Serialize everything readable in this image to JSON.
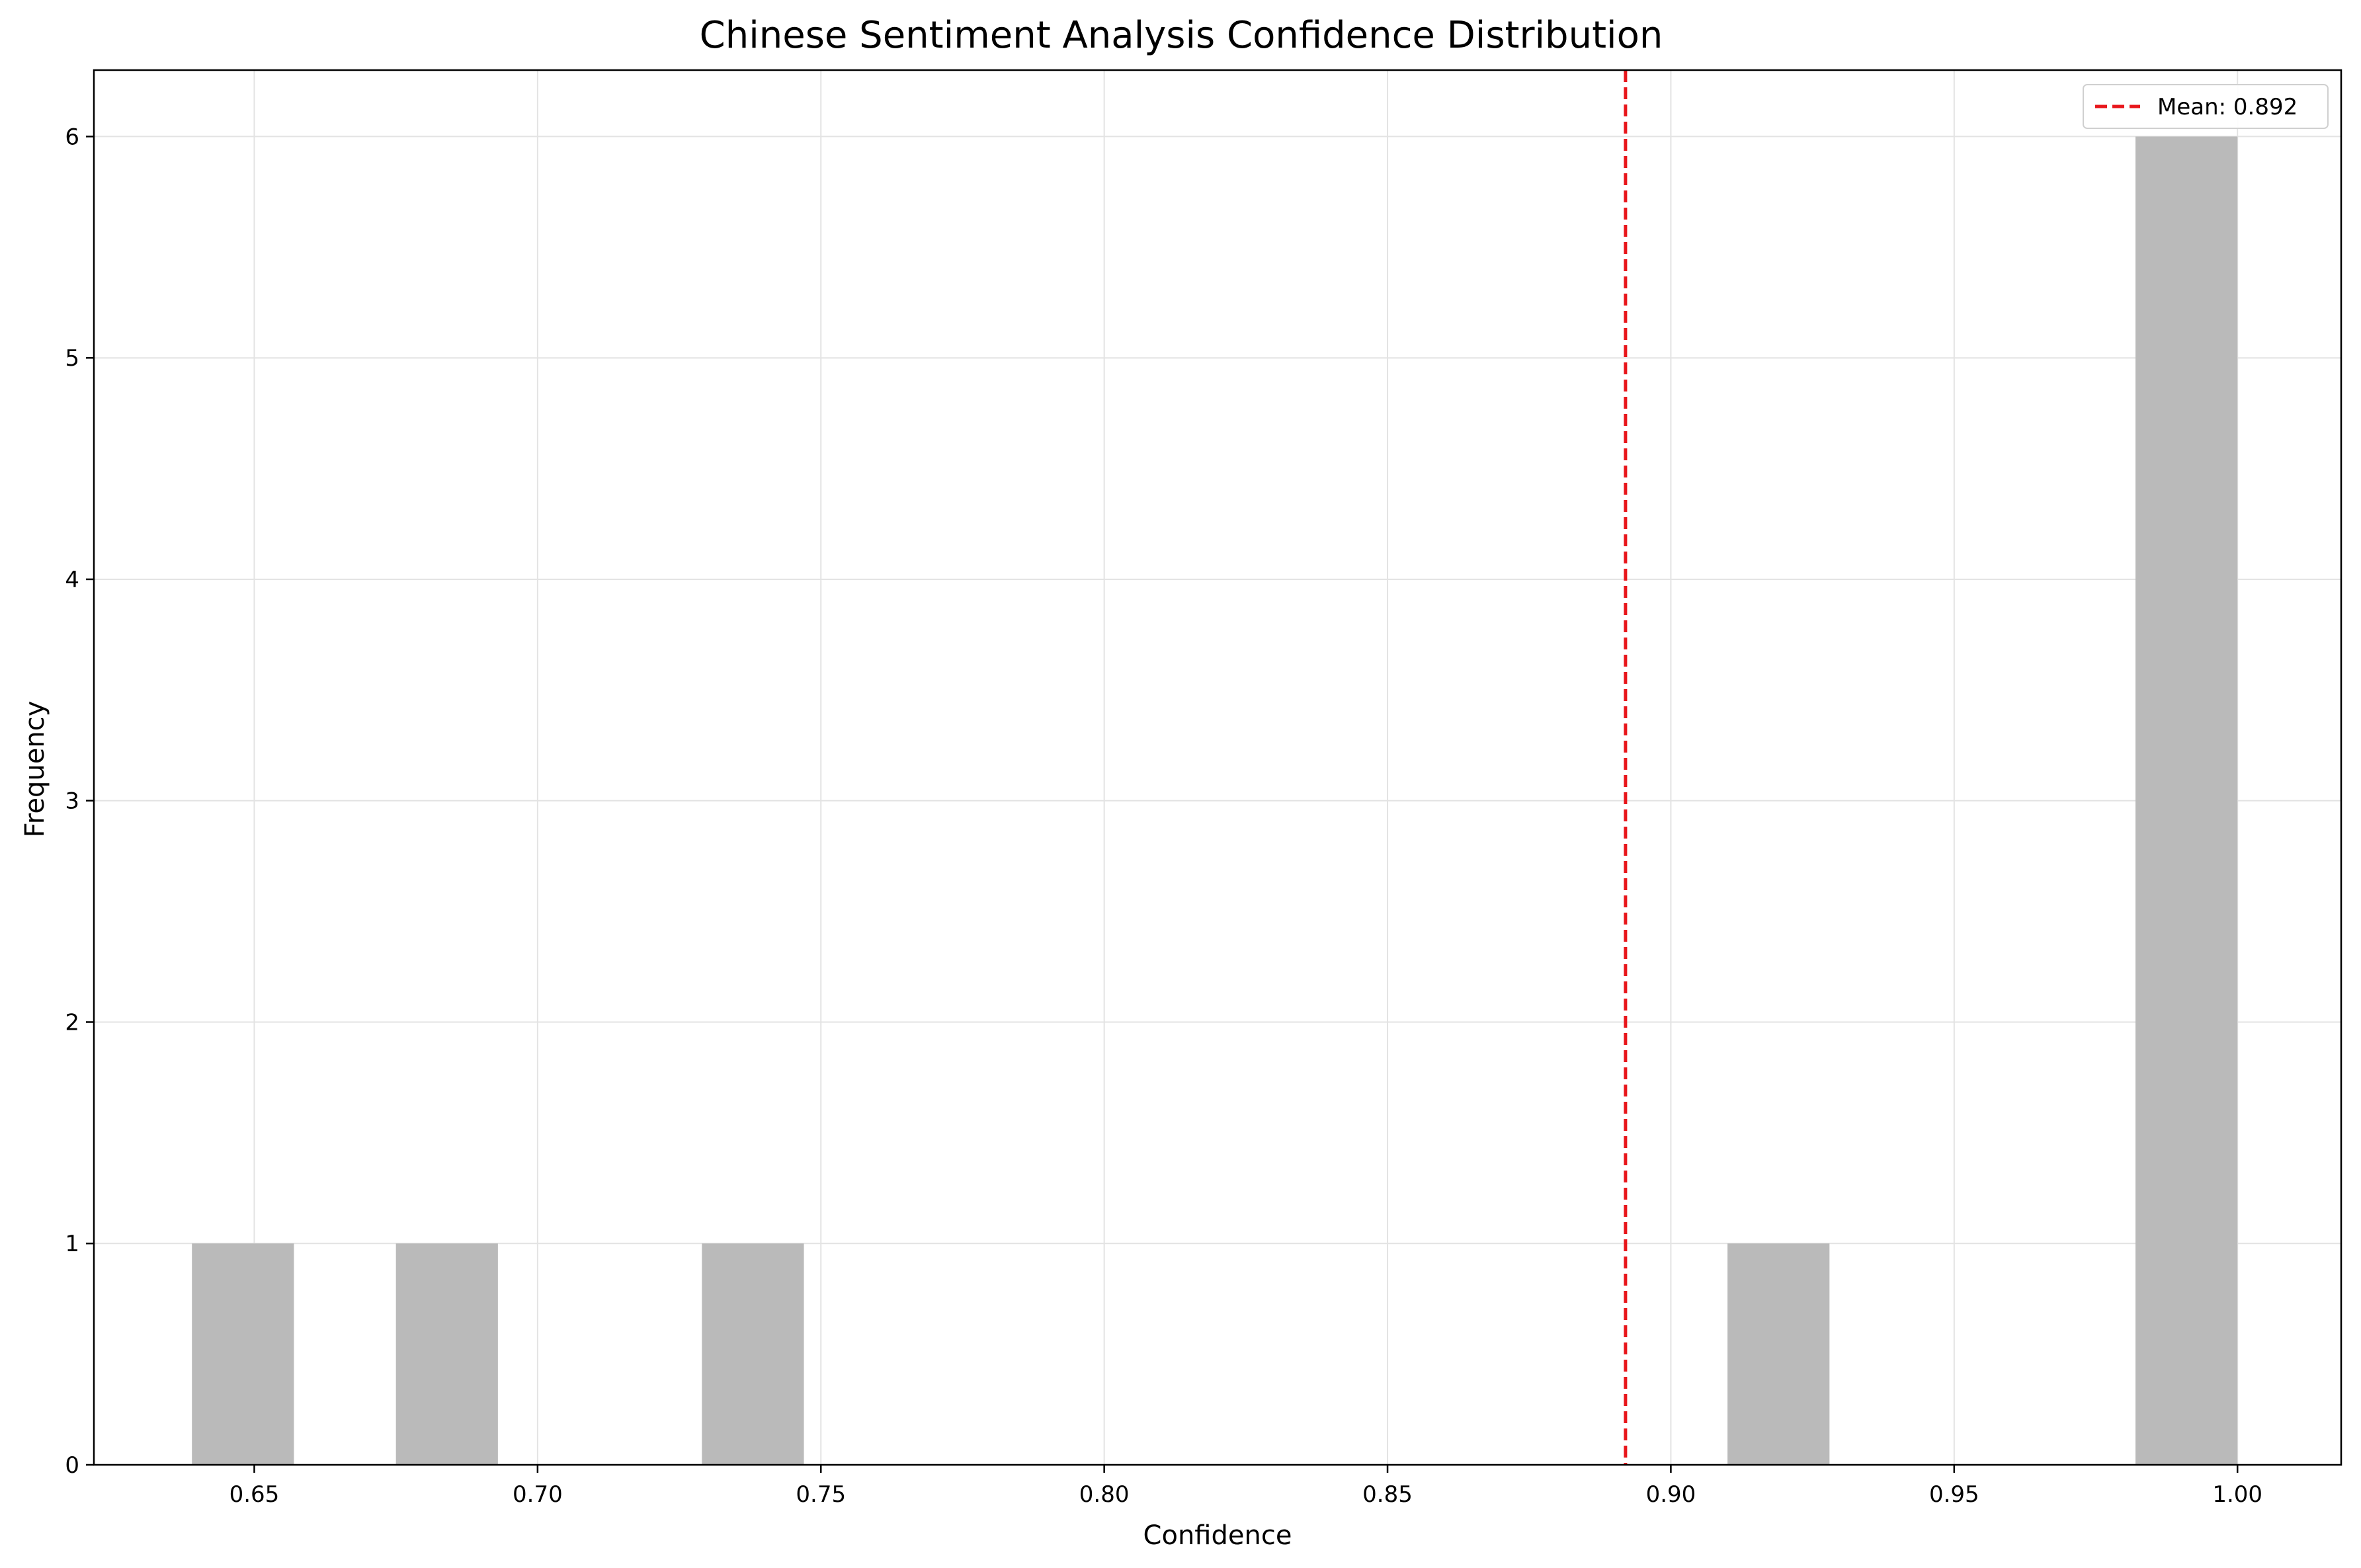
{
  "chart_data": {
    "type": "bar",
    "title": "Chinese Sentiment Analysis Confidence Distribution",
    "xlabel": "Confidence",
    "ylabel": "Frequency",
    "xlim": [
      0.6217,
      1.0183
    ],
    "ylim": [
      0,
      6.3
    ],
    "xticks": [
      "0.65",
      "0.70",
      "0.75",
      "0.80",
      "0.85",
      "0.90",
      "0.95",
      "1.00"
    ],
    "xtick_values": [
      0.65,
      0.7,
      0.75,
      0.8,
      0.85,
      0.9,
      0.95,
      1.0
    ],
    "yticks": [
      "0",
      "1",
      "2",
      "3",
      "4",
      "5",
      "6"
    ],
    "ytick_values": [
      0,
      1,
      2,
      3,
      4,
      5,
      6
    ],
    "bins": [
      {
        "x0": 0.639,
        "x1": 0.657,
        "count": 1
      },
      {
        "x0": 0.675,
        "x1": 0.693,
        "count": 1
      },
      {
        "x0": 0.729,
        "x1": 0.747,
        "count": 1
      },
      {
        "x0": 0.91,
        "x1": 0.928,
        "count": 1
      },
      {
        "x0": 0.982,
        "x1": 1.0,
        "count": 6
      }
    ],
    "bar_color": "#bababa",
    "mean_line": {
      "value": 0.892,
      "color": "#e8161b",
      "label": "Mean: 0.892"
    },
    "grid": true,
    "legend_position": "top-right"
  }
}
